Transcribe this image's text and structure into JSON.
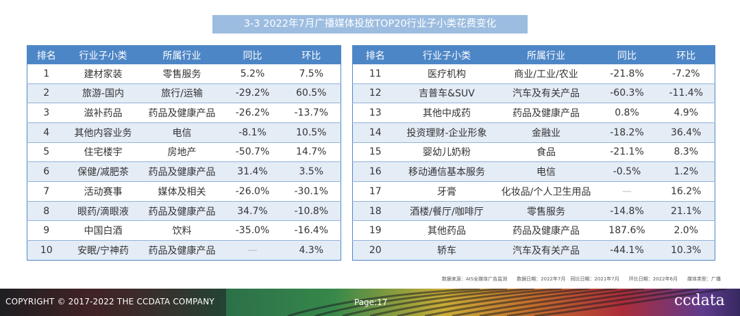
{
  "title": "3-3 2022年7月广播媒体投放TOP20行业子小类花费变化",
  "headers": [
    "排名",
    "行业子小类",
    "所属行业",
    "同比",
    "环比"
  ],
  "left_table": [
    {
      "rank": "1",
      "sub": "建材家装",
      "industry": "零售服务",
      "yoy": "5.2%",
      "mom": "7.5%"
    },
    {
      "rank": "2",
      "sub": "旅游-国内",
      "industry": "旅行/运输",
      "yoy": "-29.2%",
      "mom": "60.5%"
    },
    {
      "rank": "3",
      "sub": "滋补药品",
      "industry": "药品及健康产品",
      "yoy": "-26.2%",
      "mom": "-13.7%"
    },
    {
      "rank": "4",
      "sub": "其他内容业务",
      "industry": "电信",
      "yoy": "-8.1%",
      "mom": "10.5%"
    },
    {
      "rank": "5",
      "sub": "住宅楼宇",
      "industry": "房地产",
      "yoy": "-50.7%",
      "mom": "14.7%"
    },
    {
      "rank": "6",
      "sub": "保健/减肥茶",
      "industry": "药品及健康产品",
      "yoy": "31.4%",
      "mom": "3.5%"
    },
    {
      "rank": "7",
      "sub": "活动赛事",
      "industry": "媒体及相关",
      "yoy": "-26.0%",
      "mom": "-30.1%"
    },
    {
      "rank": "8",
      "sub": "眼药/滴眼液",
      "industry": "药品及健康产品",
      "yoy": "34.7%",
      "mom": "-10.8%"
    },
    {
      "rank": "9",
      "sub": "中国白酒",
      "industry": "饮料",
      "yoy": "-35.0%",
      "mom": "-16.4%"
    },
    {
      "rank": "10",
      "sub": "安眠/宁神药",
      "industry": "药品及健康产品",
      "yoy": "—",
      "mom": "4.3%"
    }
  ],
  "right_table": [
    {
      "rank": "11",
      "sub": "医疗机构",
      "industry": "商业/工业/农业",
      "yoy": "-21.8%",
      "mom": "-7.2%"
    },
    {
      "rank": "12",
      "sub": "吉普车&SUV",
      "industry": "汽车及有关产品",
      "yoy": "-60.3%",
      "mom": "-11.4%"
    },
    {
      "rank": "13",
      "sub": "其他中成药",
      "industry": "药品及健康产品",
      "yoy": "0.8%",
      "mom": "4.9%"
    },
    {
      "rank": "14",
      "sub": "投资理财-企业形象",
      "industry": "金融业",
      "yoy": "-18.2%",
      "mom": "36.4%"
    },
    {
      "rank": "15",
      "sub": "婴幼儿奶粉",
      "industry": "食品",
      "yoy": "-21.1%",
      "mom": "8.3%"
    },
    {
      "rank": "16",
      "sub": "移动通信基本服务",
      "industry": "电信",
      "yoy": "-0.5%",
      "mom": "1.2%"
    },
    {
      "rank": "17",
      "sub": "牙膏",
      "industry": "化妆品/个人卫生用品",
      "yoy": "—",
      "mom": "16.2%"
    },
    {
      "rank": "18",
      "sub": "酒楼/餐厅/咖啡厅",
      "industry": "零售服务",
      "yoy": "-14.8%",
      "mom": "21.1%"
    },
    {
      "rank": "19",
      "sub": "其他药品",
      "industry": "药品及健康产品",
      "yoy": "187.6%",
      "mom": "2.0%"
    },
    {
      "rank": "20",
      "sub": "轿车",
      "industry": "汽车及有关产品",
      "yoy": "-44.1%",
      "mom": "10.3%"
    }
  ],
  "source_note": "数据来源：AIS全媒体广告监测　　数据日期：2022年7月　同比日期：2021年7月　　环比日期：2022年6月　　媒体类型：广播",
  "footer": {
    "copyright": "COPYRIGHT © 2017-2022 THE CCDATA COMPANY",
    "page": "Page:17",
    "logo": "ccdata"
  },
  "colors": {
    "header_bg": "#4d86c6",
    "title_bg": "#9cbde0",
    "stripe_row": "#e4ecf6",
    "footer_bg": "#1f1f22"
  }
}
